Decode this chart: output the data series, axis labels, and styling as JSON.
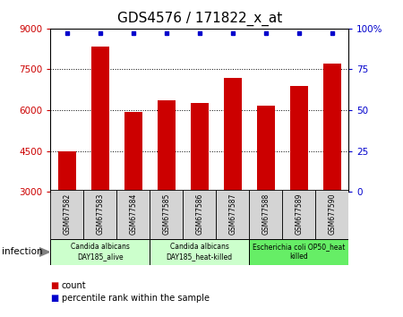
{
  "title": "GDS4576 / 171822_x_at",
  "samples": [
    "GSM677582",
    "GSM677583",
    "GSM677584",
    "GSM677585",
    "GSM677586",
    "GSM677587",
    "GSM677588",
    "GSM677589",
    "GSM677590"
  ],
  "counts": [
    4500,
    8350,
    5950,
    6350,
    6250,
    7200,
    6150,
    6900,
    7700
  ],
  "ylim_left": [
    3000,
    9000
  ],
  "yticks_left": [
    3000,
    4500,
    6000,
    7500,
    9000
  ],
  "ylim_right": [
    0,
    100
  ],
  "yticks_right": [
    0,
    25,
    50,
    75,
    100
  ],
  "bar_color": "#cc0000",
  "dot_color": "#0000cc",
  "bar_bottom": 3000,
  "groups": [
    {
      "label": "Candida albicans\nDAY185_alive",
      "start": 0,
      "end": 3,
      "color": "#ccffcc"
    },
    {
      "label": "Candida albicans\nDAY185_heat-killed",
      "start": 3,
      "end": 6,
      "color": "#ccffcc"
    },
    {
      "label": "Escherichia coli OP50_heat\nkilled",
      "start": 6,
      "end": 9,
      "color": "#66ee66"
    }
  ],
  "infection_label": "infection",
  "legend_count_label": "count",
  "legend_pct_label": "percentile rank within the sample",
  "title_fontsize": 11,
  "tick_fontsize": 7.5,
  "label_fontsize": 6,
  "sample_fontsize": 5.5,
  "group_fontsize": 5.5,
  "left_axis_color": "#cc0000",
  "right_axis_color": "#0000cc",
  "gray_cell_color": "#d4d4d4",
  "percentile_values": [
    97,
    97,
    97,
    97,
    97,
    97,
    97,
    97,
    97
  ]
}
